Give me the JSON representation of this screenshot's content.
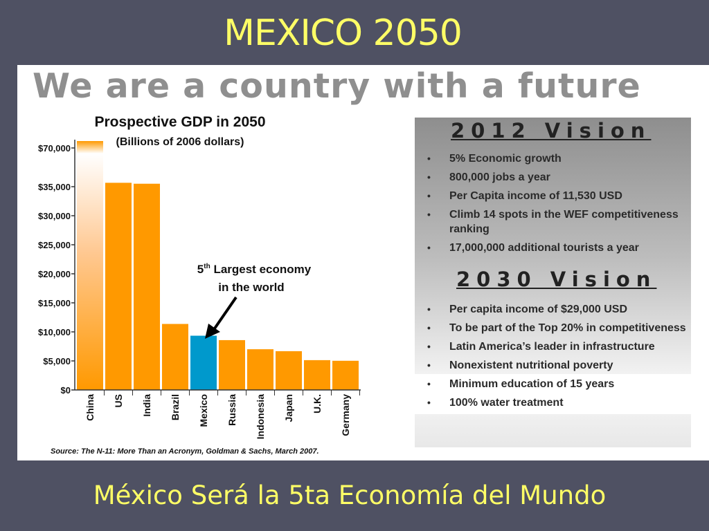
{
  "slide_title": "MEXICO 2050",
  "headline": "We are a country with a future",
  "footer": "México Será la 5ta Economía del Mundo",
  "chart_data": {
    "type": "bar",
    "title": "Prospective GDP in 2050",
    "subtitle": "(Billions of 2006 dollars)",
    "categories": [
      "China",
      "US",
      "India",
      "Brazil",
      "Mexico",
      "Russia",
      "Indonesia",
      "Japan",
      "U.K.",
      "Germany"
    ],
    "values": [
      70710,
      38514,
      37668,
      11366,
      9340,
      8580,
      7010,
      6677,
      5133,
      5024
    ],
    "highlight": "Mexico",
    "y_tick_labels": [
      "$0",
      "$5,000",
      "$10,000",
      "$15,000",
      "$20,000",
      "$25,000",
      "$30,000",
      "$35,000",
      "$70,000"
    ],
    "y_tick_values": [
      0,
      5000,
      10000,
      15000,
      20000,
      25000,
      30000,
      35000,
      70000
    ],
    "annotation_sup": "th",
    "annotation_pre": "5",
    "annotation_line1": "Largest economy",
    "annotation_line2": "in the world",
    "source": "Source: The N-11: More Than an Acronym, Goldman & Sachs, March 2007.",
    "colors": {
      "bar": "#ff9900",
      "highlight": "#0099cc",
      "china_top": "#ffffff"
    }
  },
  "vision_2012": {
    "heading": "2012 Vision",
    "items": [
      "5% Economic growth",
      "800,000 jobs a year",
      "Per Capita income of 11,530 USD",
      "Climb 14 spots in the WEF competitiveness ranking",
      "17,000,000 additional tourists a year"
    ]
  },
  "vision_2030": {
    "heading": "2030 Vision",
    "items": [
      "Per capita income of $29,000 USD",
      "To be part of the Top 20% in competitiveness",
      "Latin America’s leader in infrastructure",
      "Nonexistent nutritional poverty",
      "Minimum education of 15 years",
      "100% water treatment"
    ]
  }
}
